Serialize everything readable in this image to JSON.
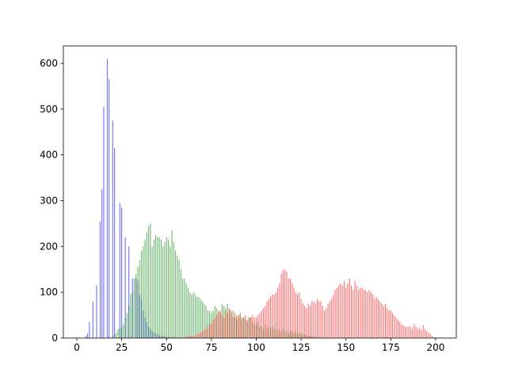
{
  "chart_data": {
    "type": "bar",
    "x": [
      0,
      1,
      2,
      3,
      4,
      5,
      6,
      7,
      8,
      9,
      10,
      11,
      12,
      13,
      14,
      15,
      16,
      17,
      18,
      19,
      20,
      21,
      22,
      23,
      24,
      25,
      26,
      27,
      28,
      29,
      30,
      31,
      32,
      33,
      34,
      35,
      36,
      37,
      38,
      39,
      40,
      41,
      42,
      43,
      44,
      45,
      46,
      47,
      48,
      49,
      50,
      51,
      52,
      53,
      54,
      55,
      56,
      57,
      58,
      59,
      60,
      61,
      62,
      63,
      64,
      65,
      66,
      67,
      68,
      69,
      70,
      71,
      72,
      73,
      74,
      75,
      76,
      77,
      78,
      79,
      80,
      81,
      82,
      83,
      84,
      85,
      86,
      87,
      88,
      89,
      90,
      91,
      92,
      93,
      94,
      95,
      96,
      97,
      98,
      99,
      100,
      101,
      102,
      103,
      104,
      105,
      106,
      107,
      108,
      109,
      110,
      111,
      112,
      113,
      114,
      115,
      116,
      117,
      118,
      119,
      120,
      121,
      122,
      123,
      124,
      125,
      126,
      127,
      128,
      129,
      130,
      131,
      132,
      133,
      134,
      135,
      136,
      137,
      138,
      139,
      140,
      141,
      142,
      143,
      144,
      145,
      146,
      147,
      148,
      149,
      150,
      151,
      152,
      153,
      154,
      155,
      156,
      157,
      158,
      159,
      160,
      161,
      162,
      163,
      164,
      165,
      166,
      167,
      168,
      169,
      170,
      171,
      172,
      173,
      174,
      175,
      176,
      177,
      178,
      179,
      180,
      181,
      182,
      183,
      184,
      185,
      186,
      187,
      188,
      189,
      190,
      191,
      192,
      193,
      194,
      195,
      196,
      197,
      198,
      199
    ],
    "series": [
      {
        "color": "#0000ff",
        "values": [
          0,
          0,
          0,
          0,
          0,
          5,
          10,
          35,
          0,
          80,
          0,
          115,
          0,
          255,
          325,
          505,
          0,
          610,
          565,
          0,
          475,
          415,
          0,
          0,
          295,
          285,
          0,
          220,
          0,
          200,
          0,
          130,
          0,
          130,
          125,
          95,
          85,
          60,
          45,
          35,
          25,
          20,
          15,
          12,
          10,
          8,
          6,
          5,
          5,
          4,
          3,
          3,
          2,
          2,
          2,
          1,
          1,
          1,
          1,
          1,
          0,
          0,
          0,
          0,
          0,
          0,
          0,
          0,
          0,
          0,
          0,
          0,
          0,
          0,
          0,
          0,
          0,
          0,
          0,
          0,
          0,
          0,
          0,
          0,
          0,
          0,
          0,
          0,
          0,
          0,
          0,
          0,
          0,
          0,
          0,
          0,
          0,
          0,
          0,
          0,
          0,
          0,
          0,
          0,
          0,
          0,
          0,
          0,
          0,
          0,
          0,
          0,
          0,
          0,
          0,
          0,
          0,
          0,
          0,
          0,
          0,
          0,
          0,
          0,
          0,
          0,
          0,
          0,
          0,
          0,
          0,
          0,
          0,
          0,
          0,
          0,
          0,
          0,
          0,
          0,
          0,
          0,
          0,
          0,
          0,
          0,
          0,
          0,
          0,
          0,
          0,
          0,
          0,
          0,
          0,
          0,
          0,
          0,
          0,
          0,
          0,
          0,
          0,
          0,
          0,
          0,
          0,
          0,
          0,
          0,
          0,
          0,
          0,
          0,
          0,
          0,
          0,
          0,
          0,
          0,
          0,
          0,
          0,
          0,
          0,
          0,
          0,
          0,
          0,
          0,
          0,
          0,
          0,
          0,
          0,
          0,
          0,
          0,
          0,
          0
        ]
      },
      {
        "color": "#008000",
        "values": [
          0,
          0,
          0,
          0,
          0,
          0,
          0,
          0,
          0,
          0,
          0,
          0,
          0,
          0,
          0,
          0,
          0,
          0,
          0,
          0,
          5,
          8,
          12,
          20,
          20,
          25,
          30,
          45,
          55,
          70,
          95,
          100,
          130,
          140,
          155,
          170,
          190,
          200,
          215,
          230,
          245,
          250,
          200,
          215,
          225,
          220,
          220,
          215,
          200,
          210,
          220,
          215,
          200,
          235,
          210,
          190,
          180,
          170,
          150,
          130,
          130,
          120,
          110,
          100,
          95,
          100,
          95,
          90,
          90,
          85,
          80,
          75,
          70,
          60,
          60,
          55,
          60,
          70,
          65,
          60,
          55,
          75,
          70,
          65,
          75,
          60,
          55,
          60,
          45,
          40,
          50,
          55,
          45,
          45,
          40,
          35,
          45,
          45,
          35,
          30,
          30,
          35,
          25,
          25,
          20,
          30,
          20,
          25,
          20,
          25,
          20,
          20,
          15,
          20,
          15,
          20,
          15,
          15,
          10,
          15,
          15,
          10,
          15,
          10,
          10,
          10,
          8,
          8,
          6,
          5,
          5,
          4,
          3,
          3,
          2,
          2,
          1,
          1,
          1,
          1,
          0,
          0,
          0,
          0,
          0,
          0,
          0,
          0,
          0,
          0,
          0,
          0,
          0,
          0,
          0,
          0,
          0,
          0,
          0,
          0,
          0,
          0,
          0,
          0,
          0,
          0,
          0,
          0,
          0,
          0,
          0,
          0,
          0,
          0,
          0,
          0,
          0,
          0,
          0,
          0,
          0,
          0,
          0,
          0,
          0,
          0,
          0,
          0,
          0,
          0,
          0,
          0,
          0,
          0,
          0,
          0,
          0,
          0,
          0,
          0
        ]
      },
      {
        "color": "#ff0000",
        "values": [
          0,
          0,
          0,
          0,
          0,
          0,
          0,
          0,
          0,
          0,
          0,
          0,
          0,
          0,
          0,
          0,
          0,
          0,
          0,
          0,
          0,
          0,
          0,
          0,
          0,
          0,
          0,
          0,
          0,
          0,
          0,
          0,
          0,
          0,
          0,
          0,
          0,
          0,
          0,
          0,
          0,
          0,
          0,
          0,
          0,
          0,
          0,
          0,
          0,
          0,
          0,
          0,
          0,
          0,
          0,
          0,
          0,
          0,
          0,
          0,
          2,
          3,
          3,
          4,
          5,
          5,
          6,
          8,
          10,
          12,
          15,
          18,
          20,
          25,
          30,
          30,
          40,
          45,
          50,
          55,
          60,
          50,
          45,
          60,
          55,
          65,
          60,
          45,
          55,
          50,
          45,
          50,
          40,
          45,
          50,
          40,
          45,
          45,
          50,
          45,
          45,
          50,
          55,
          60,
          65,
          70,
          80,
          85,
          90,
          95,
          95,
          100,
          110,
          120,
          140,
          148,
          150,
          145,
          130,
          130,
          120,
          110,
          100,
          95,
          100,
          85,
          75,
          70,
          65,
          75,
          70,
          80,
          80,
          75,
          85,
          80,
          80,
          70,
          60,
          65,
          75,
          80,
          85,
          95,
          105,
          110,
          115,
          120,
          115,
          125,
          110,
          120,
          130,
          115,
          105,
          125,
          115,
          105,
          110,
          110,
          105,
          105,
          100,
          105,
          100,
          95,
          85,
          90,
          85,
          80,
          75,
          70,
          75,
          65,
          60,
          60,
          55,
          50,
          45,
          40,
          35,
          30,
          28,
          25,
          25,
          25,
          25,
          20,
          30,
          25,
          20,
          22,
          18,
          28,
          20,
          15,
          12,
          10,
          5,
          2
        ]
      }
    ],
    "xlim": [
      -7.5,
      211.5
    ],
    "ylim": [
      0,
      638
    ],
    "xticks": [
      0,
      25,
      50,
      75,
      100,
      125,
      150,
      175,
      200
    ],
    "yticks": [
      0,
      100,
      200,
      300,
      400,
      500,
      600
    ]
  }
}
